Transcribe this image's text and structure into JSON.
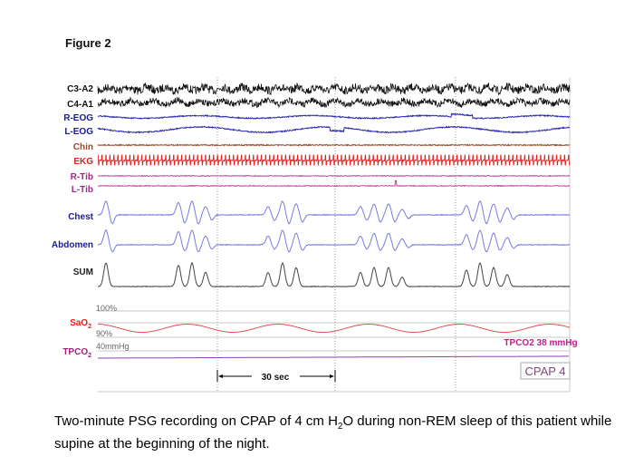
{
  "figure_title": "Figure 2",
  "channels": {
    "c3a2": "C3-A2",
    "c4a1": "C4-A1",
    "reog": "R-EOG",
    "leog": "L-EOG",
    "chin": "Chin",
    "ekg": "EKG",
    "rtib": "R-Tib",
    "ltib": "L-Tib",
    "chest": "Chest",
    "abdomen": "Abdomen",
    "sum": "SUM",
    "sao2": {
      "main": "SaO",
      "sub": "2"
    },
    "tpco2": {
      "main": "TPCO",
      "sub": "2"
    }
  },
  "scale_labels": {
    "sat_top": "100%",
    "sat_bottom": "90%",
    "co2": "40mmHg"
  },
  "annotations": {
    "tpco2_value": "TPCO2 38 mmHg",
    "time_bar": "30 sec",
    "cpap": "CPAP 4"
  },
  "caption": {
    "part1": "Two-minute PSG recording on CPAP of 4 cm H",
    "sub": "2",
    "part2": "O during non-REM sleep of this patient while supine at the beginning of the night."
  },
  "colors": {
    "eeg": "#111111",
    "eog": "#2b2bb0",
    "chin": "#9a4a2a",
    "ekg": "#e02020",
    "tib": "#b0208a",
    "resp": "#7a7ae0",
    "sum": "#444444",
    "sao2": "#e05050",
    "tpco2": "#9040b0",
    "annotation": "#c0208a"
  }
}
